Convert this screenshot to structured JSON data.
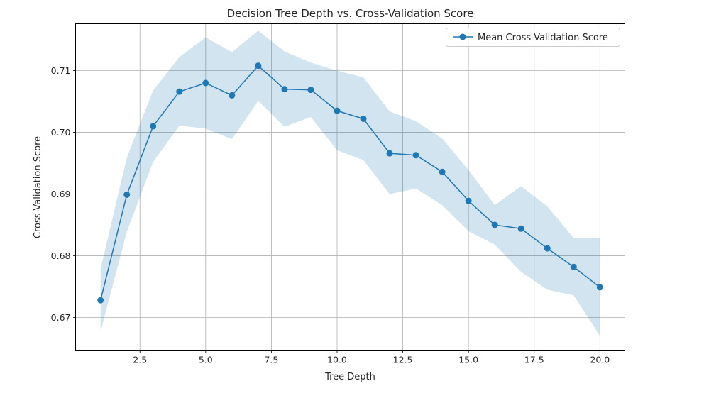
{
  "chart_data": {
    "type": "line",
    "title": "Decision Tree Depth vs. Cross-Validation Score",
    "xlabel": "Tree Depth",
    "ylabel": "Cross-Validation Score",
    "xlim": [
      0.05,
      20.95
    ],
    "ylim": [
      0.6646,
      0.7176
    ],
    "xticks": [
      2.5,
      5.0,
      7.5,
      10.0,
      12.5,
      15.0,
      17.5,
      20.0
    ],
    "xtick_labels": [
      "2.5",
      "5.0",
      "7.5",
      "10.0",
      "12.5",
      "15.0",
      "17.5",
      "20.0"
    ],
    "yticks": [
      0.67,
      0.68,
      0.69,
      0.7,
      0.71
    ],
    "ytick_labels": [
      "0.67",
      "0.68",
      "0.69",
      "0.70",
      "0.71"
    ],
    "grid": true,
    "legend": {
      "position": "top-right",
      "entries": [
        "Mean Cross-Validation Score"
      ]
    },
    "series": [
      {
        "name": "Mean Cross-Validation Score",
        "color": "#1f77b4",
        "x": [
          1,
          2,
          3,
          4,
          5,
          6,
          7,
          8,
          9,
          10,
          11,
          12,
          13,
          14,
          15,
          16,
          17,
          18,
          19,
          20
        ],
        "y": [
          0.6728,
          0.6899,
          0.701,
          0.7066,
          0.708,
          0.706,
          0.7108,
          0.707,
          0.7069,
          0.7035,
          0.7022,
          0.6966,
          0.6963,
          0.6936,
          0.6889,
          0.685,
          0.6844,
          0.6812,
          0.6782,
          0.6749
        ],
        "upper": [
          0.6779,
          0.6959,
          0.7068,
          0.7122,
          0.7154,
          0.713,
          0.7165,
          0.7131,
          0.7113,
          0.71,
          0.7089,
          0.7034,
          0.7018,
          0.699,
          0.6939,
          0.6882,
          0.6913,
          0.688,
          0.6829,
          0.6829
        ],
        "lower": [
          0.6677,
          0.6839,
          0.6952,
          0.7011,
          0.7006,
          0.6989,
          0.7051,
          0.7009,
          0.7025,
          0.6971,
          0.6955,
          0.69,
          0.6909,
          0.6882,
          0.684,
          0.6818,
          0.6774,
          0.6745,
          0.6736,
          0.667
        ],
        "band_color": "#1f77b4",
        "band_opacity": 0.2
      }
    ]
  }
}
